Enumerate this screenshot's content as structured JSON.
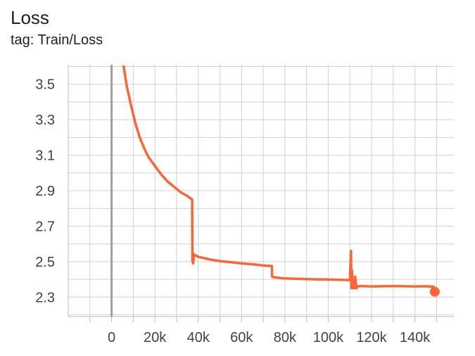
{
  "header": {
    "title": "Loss",
    "subtitle": "tag: Train/Loss"
  },
  "colors": {
    "series": "#ff6437",
    "grid": "#d0d0d0",
    "zero_axis": "#9e9e9e",
    "tick_text": "#424242"
  },
  "chart_data": {
    "type": "line",
    "title": "Loss",
    "subtitle": "tag: Train/Loss",
    "xlabel": "",
    "ylabel": "",
    "xlim": [
      -20000,
      158000
    ],
    "ylim": [
      2.19,
      3.61
    ],
    "grid": true,
    "legend": "none",
    "x_ticks": [
      0,
      20000,
      40000,
      60000,
      80000,
      100000,
      120000,
      140000
    ],
    "x_tick_labels": [
      "0",
      "20k",
      "40k",
      "60k",
      "80k",
      "100k",
      "120k",
      "140k"
    ],
    "y_ticks": [
      2.3,
      2.5,
      2.7,
      2.9,
      3.1,
      3.3,
      3.5
    ],
    "y_tick_labels": [
      "2.3",
      "2.5",
      "2.7",
      "2.9",
      "3.1",
      "3.3",
      "3.5"
    ],
    "series": [
      {
        "x": [
          5600,
          7000,
          9000,
          11000,
          13000,
          15000,
          17000,
          20000,
          23000,
          26000,
          29000,
          32000,
          35000,
          37200,
          37300,
          37500,
          37700,
          38000,
          40000,
          45000,
          50000,
          55000,
          60000,
          65000,
          70000,
          74000,
          74100,
          74500,
          76000,
          80000,
          85000,
          90000,
          95000,
          100000,
          105000,
          110000,
          110500,
          110700,
          111000,
          111500,
          112000,
          112500,
          113000,
          113500,
          114000,
          115000,
          120000,
          125000,
          130000,
          135000,
          140000,
          145000,
          148600
        ],
        "y": [
          3.6,
          3.49,
          3.38,
          3.28,
          3.2,
          3.14,
          3.09,
          3.04,
          2.99,
          2.95,
          2.92,
          2.89,
          2.87,
          2.85,
          2.5,
          2.55,
          2.49,
          2.54,
          2.527,
          2.513,
          2.503,
          2.497,
          2.49,
          2.485,
          2.478,
          2.475,
          2.415,
          2.413,
          2.41,
          2.405,
          2.403,
          2.401,
          2.4,
          2.399,
          2.398,
          2.396,
          2.56,
          2.35,
          2.45,
          2.352,
          2.35,
          2.415,
          2.35,
          2.36,
          2.361,
          2.362,
          2.36,
          2.361,
          2.362,
          2.361,
          2.36,
          2.361,
          2.359
        ]
      }
    ],
    "end_marker": {
      "x": 149200,
      "y": 2.33
    }
  }
}
